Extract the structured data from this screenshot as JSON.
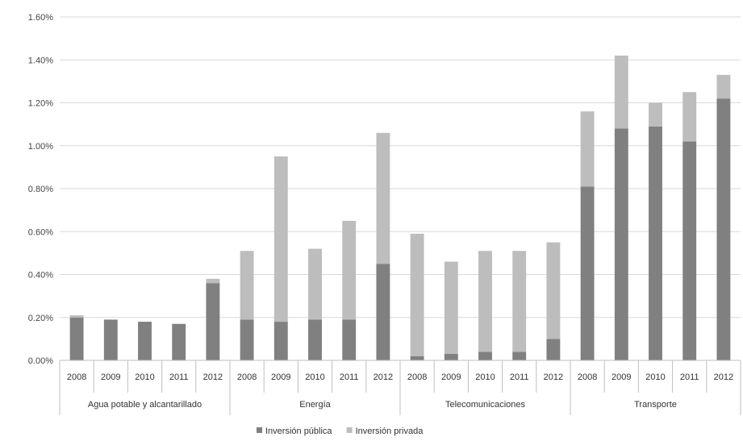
{
  "chart_data": {
    "type": "bar",
    "stacked": true,
    "ylim": [
      0,
      0.016
    ],
    "yticks": [
      0,
      0.002,
      0.004,
      0.006,
      0.008,
      0.01,
      0.012,
      0.014,
      0.016
    ],
    "ytick_labels": [
      "0.00%",
      "0.20%",
      "0.40%",
      "0.60%",
      "0.80%",
      "1.00%",
      "1.20%",
      "1.40%",
      "1.60%"
    ],
    "grid": true,
    "legend_position": "bottom",
    "groups": [
      {
        "label": "Agua potable y alcantarillado",
        "categories": [
          "2008",
          "2009",
          "2010",
          "2011",
          "2012"
        ]
      },
      {
        "label": "Energía",
        "categories": [
          "2008",
          "2009",
          "2010",
          "2011",
          "2012"
        ]
      },
      {
        "label": "Telecomunicaciones",
        "categories": [
          "2008",
          "2009",
          "2010",
          "2011",
          "2012"
        ]
      },
      {
        "label": "Transporte",
        "categories": [
          "2008",
          "2009",
          "2010",
          "2011",
          "2012"
        ]
      }
    ],
    "series": [
      {
        "name": "Inversión pública",
        "color": "#808080",
        "values": [
          0.002,
          0.0019,
          0.0018,
          0.0017,
          0.0036,
          0.0019,
          0.0018,
          0.0019,
          0.0019,
          0.0045,
          0.0002,
          0.0003,
          0.0004,
          0.0004,
          0.001,
          0.0081,
          0.0108,
          0.0109,
          0.0102,
          0.0122
        ]
      },
      {
        "name": "Inversión privada",
        "color": "#bdbdbd",
        "values": [
          0.0001,
          0.0,
          0.0,
          0.0,
          0.0002,
          0.0032,
          0.0077,
          0.0033,
          0.0046,
          0.0061,
          0.0057,
          0.0043,
          0.0047,
          0.0047,
          0.0045,
          0.0035,
          0.0034,
          0.0011,
          0.0023,
          0.0011
        ]
      }
    ]
  }
}
